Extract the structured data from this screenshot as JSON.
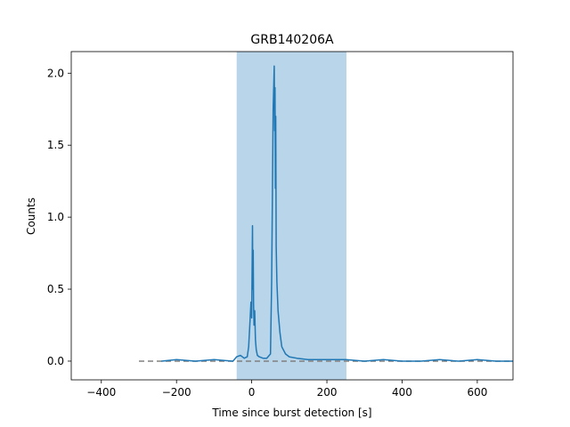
{
  "chart_data": {
    "type": "line",
    "title": "GRB140206A",
    "xlabel": "Time since burst detection [s]",
    "ylabel": "Counts",
    "xlim": [
      -480,
      695
    ],
    "ylim": [
      -0.13,
      2.15
    ],
    "xticks": [
      -400,
      -200,
      0,
      200,
      400,
      600
    ],
    "xtick_labels": [
      "−400",
      "−200",
      "0",
      "200",
      "400",
      "600"
    ],
    "yticks": [
      0.0,
      0.5,
      1.0,
      1.5,
      2.0
    ],
    "ytick_labels": [
      "0.0",
      "0.5",
      "1.0",
      "1.5",
      "2.0"
    ],
    "grid": false,
    "shaded_interval": {
      "x_start": -40,
      "x_end": 252,
      "color": "#b9d5ea"
    },
    "baseline": {
      "x_start": -300,
      "x_end": 690,
      "y": 0.0,
      "style": "dashed",
      "color": "#808080"
    },
    "series": [
      {
        "color": "#1f77b4",
        "x": [
          -240,
          -200,
          -150,
          -100,
          -50,
          -40,
          -30,
          -20,
          -12,
          -8,
          -4,
          -2,
          0,
          2,
          3,
          4,
          5,
          6,
          8,
          10,
          12,
          15,
          20,
          30,
          40,
          50,
          53,
          55,
          57,
          59,
          60,
          61,
          62,
          63,
          64,
          65,
          67,
          70,
          75,
          80,
          90,
          100,
          120,
          150,
          200,
          250,
          300,
          350,
          400,
          450,
          500,
          550,
          600,
          650,
          695
        ],
        "y": [
          0.0,
          0.01,
          0.0,
          0.01,
          0.0,
          0.03,
          0.04,
          0.02,
          0.03,
          0.1,
          0.3,
          0.41,
          0.3,
          0.94,
          0.5,
          0.77,
          0.4,
          0.25,
          0.35,
          0.15,
          0.08,
          0.04,
          0.03,
          0.02,
          0.02,
          0.05,
          0.55,
          1.1,
          1.75,
          1.95,
          2.05,
          1.6,
          1.9,
          1.2,
          1.7,
          0.8,
          0.55,
          0.35,
          0.2,
          0.1,
          0.05,
          0.03,
          0.02,
          0.01,
          0.01,
          0.01,
          0.0,
          0.01,
          0.0,
          0.0,
          0.01,
          0.0,
          0.01,
          0.0,
          0.0
        ]
      }
    ]
  }
}
